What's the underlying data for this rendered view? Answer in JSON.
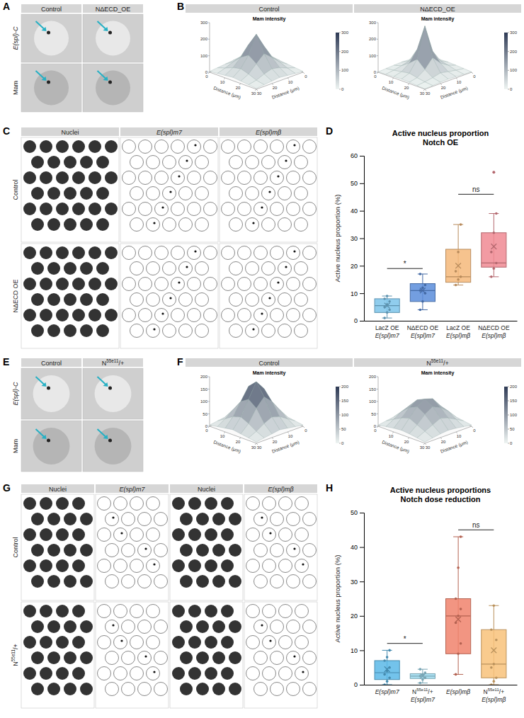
{
  "panels": [
    "A",
    "B",
    "C",
    "D",
    "E",
    "F",
    "G",
    "H"
  ],
  "image_panels": {
    "A": {
      "columns": [
        "Control",
        "NΔECD_OE"
      ],
      "rows": [
        "E(spl)-C",
        "Mam"
      ]
    },
    "C": {
      "columns": [
        "Nuclei",
        "E(spl)m7",
        "E(spl)mβ"
      ],
      "rows": [
        "Control",
        "NΔECD OE"
      ]
    },
    "E": {
      "columns": [
        "Control",
        "N55e11/+"
      ],
      "rows": [
        "E(spl)-C",
        "Mam"
      ]
    },
    "G": {
      "columns": [
        "Nuclei",
        "E(spl)m7",
        "Nuclei",
        "E(spl)mβ"
      ],
      "rows": [
        "Control",
        "N55e11/+"
      ]
    }
  },
  "chart_data": [
    {
      "type": "surface",
      "header": "Control",
      "title": "Mam intensity",
      "xlabel": "Distance (μm)",
      "ylabel": "Distance (μm)",
      "x": [
        0,
        5,
        10,
        15,
        20,
        25,
        30
      ],
      "y": [
        0,
        5,
        10,
        15,
        20,
        25,
        30
      ],
      "z": [
        [
          5,
          10,
          15,
          20,
          15,
          10,
          5
        ],
        [
          10,
          30,
          50,
          60,
          45,
          25,
          10
        ],
        [
          15,
          50,
          100,
          140,
          90,
          45,
          15
        ],
        [
          20,
          60,
          150,
          230,
          130,
          55,
          20
        ],
        [
          15,
          45,
          90,
          120,
          85,
          40,
          15
        ],
        [
          10,
          25,
          45,
          55,
          40,
          20,
          10
        ],
        [
          5,
          10,
          15,
          20,
          15,
          10,
          5
        ]
      ],
      "xlim": [
        0,
        30
      ],
      "xticks": [
        0,
        10,
        20,
        30
      ],
      "ylim": [
        0,
        30
      ],
      "yticks": [
        0,
        10,
        20,
        30
      ],
      "zlim": [
        0,
        300
      ],
      "zticks": [
        0,
        100,
        200,
        300
      ],
      "colorbar_range": [
        0,
        300
      ],
      "colorbar_ticks": [
        0,
        100,
        200,
        300
      ]
    },
    {
      "type": "surface",
      "header": "NΔECD_OE",
      "title": "Mam intensity",
      "xlabel": "Distance (μm)",
      "ylabel": "Distance (μm)",
      "x": [
        0,
        5,
        10,
        15,
        20,
        25,
        30
      ],
      "y": [
        0,
        5,
        10,
        15,
        20,
        25,
        30
      ],
      "z": [
        [
          2,
          5,
          8,
          10,
          8,
          5,
          2
        ],
        [
          5,
          15,
          25,
          35,
          25,
          12,
          5
        ],
        [
          8,
          25,
          60,
          110,
          55,
          20,
          8
        ],
        [
          10,
          35,
          120,
          280,
          105,
          30,
          10
        ],
        [
          8,
          22,
          55,
          95,
          50,
          18,
          8
        ],
        [
          5,
          12,
          20,
          28,
          18,
          10,
          5
        ],
        [
          2,
          5,
          8,
          10,
          8,
          5,
          2
        ]
      ],
      "xlim": [
        0,
        30
      ],
      "xticks": [
        0,
        10,
        20,
        30
      ],
      "ylim": [
        0,
        30
      ],
      "yticks": [
        0,
        10,
        20,
        30
      ],
      "zlim": [
        0,
        300
      ],
      "zticks": [
        0,
        100,
        200,
        300
      ],
      "colorbar_range": [
        0,
        300
      ],
      "colorbar_ticks": [
        0,
        100,
        200,
        300
      ]
    },
    {
      "type": "box",
      "title": [
        "Active nucleus proportion",
        "Notch OE"
      ],
      "ylabel": "Active nucleus proportion (%)",
      "categories": [
        [
          "LacZ OE",
          "E(spl)m7"
        ],
        [
          "NΔECD OE",
          "E(spl)m7"
        ],
        [
          "LacZ OE",
          "E(spl)mβ"
        ],
        [
          "NΔECD OE",
          "E(spl)mβ"
        ]
      ],
      "colors": [
        "#7cc4ea",
        "#5b8ddb",
        "#f5b97a",
        "#f08a93"
      ],
      "ylim": [
        0,
        60
      ],
      "yticks": [
        0,
        10,
        20,
        30,
        40,
        50,
        60
      ],
      "boxes": [
        {
          "min": 1,
          "q1": 3,
          "median": 5.5,
          "q3": 8,
          "max": 9,
          "mean": 5.5,
          "points": [
            1,
            3,
            4,
            5,
            6,
            7,
            8,
            9
          ],
          "outliers": []
        },
        {
          "min": 4,
          "q1": 7,
          "median": 11,
          "q3": 13.5,
          "max": 17,
          "mean": 11,
          "points": [
            4,
            7,
            10,
            11,
            12,
            13,
            17
          ],
          "outliers": []
        },
        {
          "min": 13,
          "q1": 14,
          "median": 16,
          "q3": 26,
          "max": 35,
          "mean": 20,
          "points": [
            13,
            15,
            16,
            18,
            25,
            35
          ],
          "outliers": []
        },
        {
          "min": 16,
          "q1": 19.5,
          "median": 21,
          "q3": 32,
          "max": 39,
          "mean": 27,
          "points": [
            16,
            19,
            21,
            25,
            32,
            39
          ],
          "outliers": [
            54
          ]
        }
      ],
      "annotations": [
        {
          "text": "*",
          "from": 0,
          "to": 1,
          "y": 19
        },
        {
          "text": "ns",
          "from": 2,
          "to": 3,
          "y": 46
        }
      ]
    },
    {
      "type": "surface",
      "header": "Control",
      "title": "Mam intensity",
      "xlabel": "Distance (μm)",
      "ylabel": "Distance (μm)",
      "x": [
        0,
        5,
        10,
        15,
        20,
        25,
        30
      ],
      "y": [
        0,
        5,
        10,
        15,
        20,
        25,
        30
      ],
      "z": [
        [
          5,
          10,
          15,
          20,
          15,
          10,
          5
        ],
        [
          10,
          35,
          60,
          70,
          55,
          30,
          10
        ],
        [
          15,
          60,
          110,
          140,
          100,
          50,
          15
        ],
        [
          20,
          70,
          150,
          180,
          130,
          60,
          20
        ],
        [
          15,
          55,
          100,
          120,
          95,
          45,
          15
        ],
        [
          10,
          30,
          50,
          60,
          45,
          25,
          10
        ],
        [
          5,
          10,
          15,
          20,
          15,
          10,
          5
        ]
      ],
      "xlim": [
        0,
        30
      ],
      "xticks": [
        0,
        10,
        20,
        30
      ],
      "ylim": [
        0,
        30
      ],
      "yticks": [
        0,
        10,
        20,
        30
      ],
      "zlim": [
        0,
        200
      ],
      "zticks": [
        0,
        50,
        100,
        150,
        200
      ],
      "colorbar_range": [
        0,
        200
      ],
      "colorbar_ticks": [
        0,
        50,
        100,
        150,
        200
      ]
    },
    {
      "type": "surface",
      "header": "N55e11/+",
      "title": "Mam intensity",
      "xlabel": "Distance (μm)",
      "ylabel": "Distance (μm)",
      "x": [
        0,
        5,
        10,
        15,
        20,
        25,
        30
      ],
      "y": [
        0,
        5,
        10,
        15,
        20,
        25,
        30
      ],
      "z": [
        [
          5,
          10,
          15,
          18,
          15,
          10,
          5
        ],
        [
          10,
          30,
          50,
          60,
          50,
          28,
          10
        ],
        [
          15,
          50,
          80,
          100,
          75,
          45,
          15
        ],
        [
          18,
          60,
          95,
          110,
          90,
          55,
          18
        ],
        [
          15,
          48,
          75,
          90,
          70,
          40,
          15
        ],
        [
          10,
          28,
          45,
          55,
          40,
          25,
          10
        ],
        [
          5,
          10,
          15,
          18,
          15,
          10,
          5
        ]
      ],
      "xlim": [
        0,
        30
      ],
      "xticks": [
        0,
        10,
        20,
        30
      ],
      "ylim": [
        0,
        30
      ],
      "yticks": [
        0,
        10,
        20,
        30
      ],
      "zlim": [
        0,
        200
      ],
      "zticks": [
        0,
        50,
        100,
        150,
        200
      ],
      "colorbar_range": [
        0,
        200
      ],
      "colorbar_ticks": [
        0,
        50,
        100,
        150,
        200
      ]
    },
    {
      "type": "box",
      "title": [
        "Active nucleus proportions",
        "Notch dose reduction"
      ],
      "ylabel": "Active nucleus proportion (%)",
      "categories": [
        [
          "E(spl)m7"
        ],
        [
          "N55e11/+",
          "E(spl)m7"
        ],
        [
          "E(spl)mβ"
        ],
        [
          "N55e11/+",
          "E(spl)mβ"
        ]
      ],
      "colors": [
        "#5bb8e8",
        "#9fdcf0",
        "#f0826c",
        "#f8c27a"
      ],
      "ylim": [
        0,
        50
      ],
      "yticks": [
        0,
        10,
        20,
        30,
        40,
        50
      ],
      "boxes": [
        {
          "min": 0,
          "q1": 1.5,
          "median": 3.5,
          "q3": 7,
          "max": 10,
          "mean": 4.5,
          "points": [
            0,
            1,
            2,
            3,
            4,
            5,
            7,
            8,
            10
          ],
          "outliers": []
        },
        {
          "min": 0.5,
          "q1": 1.8,
          "median": 2.5,
          "q3": 3.2,
          "max": 4.5,
          "mean": 2.5,
          "points": [
            0.5,
            1.5,
            2,
            2.5,
            3,
            3.5,
            4.5
          ],
          "outliers": []
        },
        {
          "min": 3,
          "q1": 9,
          "median": 20,
          "q3": 25,
          "max": 43,
          "mean": 19,
          "points": [
            3,
            9,
            12,
            18,
            20,
            22,
            25,
            34,
            43
          ],
          "outliers": []
        },
        {
          "min": 0,
          "q1": 2,
          "median": 6,
          "q3": 16,
          "max": 23,
          "mean": 10,
          "points": [
            0,
            1,
            2,
            5,
            6,
            13,
            16,
            23
          ],
          "outliers": []
        }
      ],
      "annotations": [
        {
          "text": "*",
          "from": 0,
          "to": 1,
          "y": 12
        },
        {
          "text": "ns",
          "from": 2,
          "to": 3,
          "y": 45
        }
      ]
    }
  ]
}
